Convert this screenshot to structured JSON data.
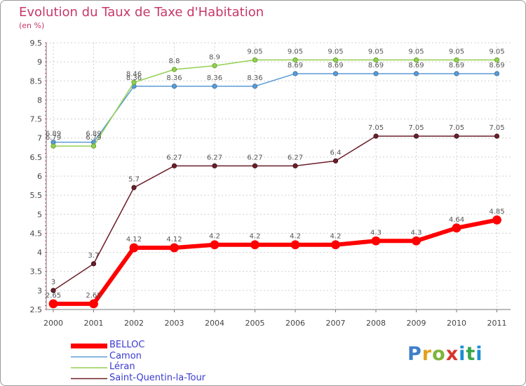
{
  "title": "Evolution du Taux de Taxe d'Habitation",
  "subtitle": "(en %)",
  "logo": "Proxiti",
  "chart_data": {
    "type": "line",
    "title": "Evolution du Taux de Taxe d'Habitation",
    "ylabel": "(en %)",
    "xlabel": "",
    "ylim": [
      2.5,
      9.5
    ],
    "yticks": [
      2.5,
      3,
      3.5,
      4,
      4.5,
      5,
      5.5,
      6,
      6.5,
      7,
      7.5,
      8,
      8.5,
      9,
      9.5
    ],
    "categories": [
      "2000",
      "2001",
      "2002",
      "2003",
      "2004",
      "2005",
      "2006",
      "2007",
      "2008",
      "2009",
      "2010",
      "2011"
    ],
    "legend_position": "bottom-left",
    "grid": true,
    "series": [
      {
        "name": "BELLOC",
        "color": "#ff0000",
        "values": [
          2.65,
          2.65,
          4.12,
          4.12,
          4.2,
          4.2,
          4.2,
          4.2,
          4.3,
          4.3,
          4.64,
          4.85
        ],
        "labels": [
          "2.65",
          "2.65",
          "4.12",
          "4.12",
          "4.2",
          "4.2",
          "4.2",
          "4.2",
          "4.3",
          "4.3",
          "4.64",
          "4.85"
        ]
      },
      {
        "name": "Camon",
        "color": "#5b9bd5",
        "values": [
          6.89,
          6.89,
          8.36,
          8.36,
          8.36,
          8.36,
          8.69,
          8.69,
          8.69,
          8.69,
          8.69,
          8.69
        ],
        "labels": [
          "6.89",
          "6.89",
          "8.36",
          "8.36",
          "8.36",
          "8.36",
          "8.69",
          "8.69",
          "8.69",
          "8.69",
          "8.69",
          "8.69"
        ]
      },
      {
        "name": "Léran",
        "color": "#92d050",
        "values": [
          6.79,
          6.79,
          8.46,
          8.8,
          8.9,
          9.05,
          9.05,
          9.05,
          9.05,
          9.05,
          9.05,
          9.05
        ],
        "labels": [
          "6.79",
          "6.79",
          "8.46",
          "8.8",
          "8.9",
          "9.05",
          "9.05",
          "9.05",
          "9.05",
          "9.05",
          "9.05",
          "9.05"
        ]
      },
      {
        "name": "Saint-Quentin-la-Tour",
        "color": "#6b1f2a",
        "values": [
          3,
          3.7,
          5.7,
          6.27,
          6.27,
          6.27,
          6.27,
          6.4,
          7.05,
          7.05,
          7.05,
          7.05
        ],
        "labels": [
          "3",
          "3.7",
          "5.7",
          "6.27",
          "6.27",
          "6.27",
          "6.27",
          "6.4",
          "7.05",
          "7.05",
          "7.05",
          "7.05"
        ]
      }
    ]
  }
}
